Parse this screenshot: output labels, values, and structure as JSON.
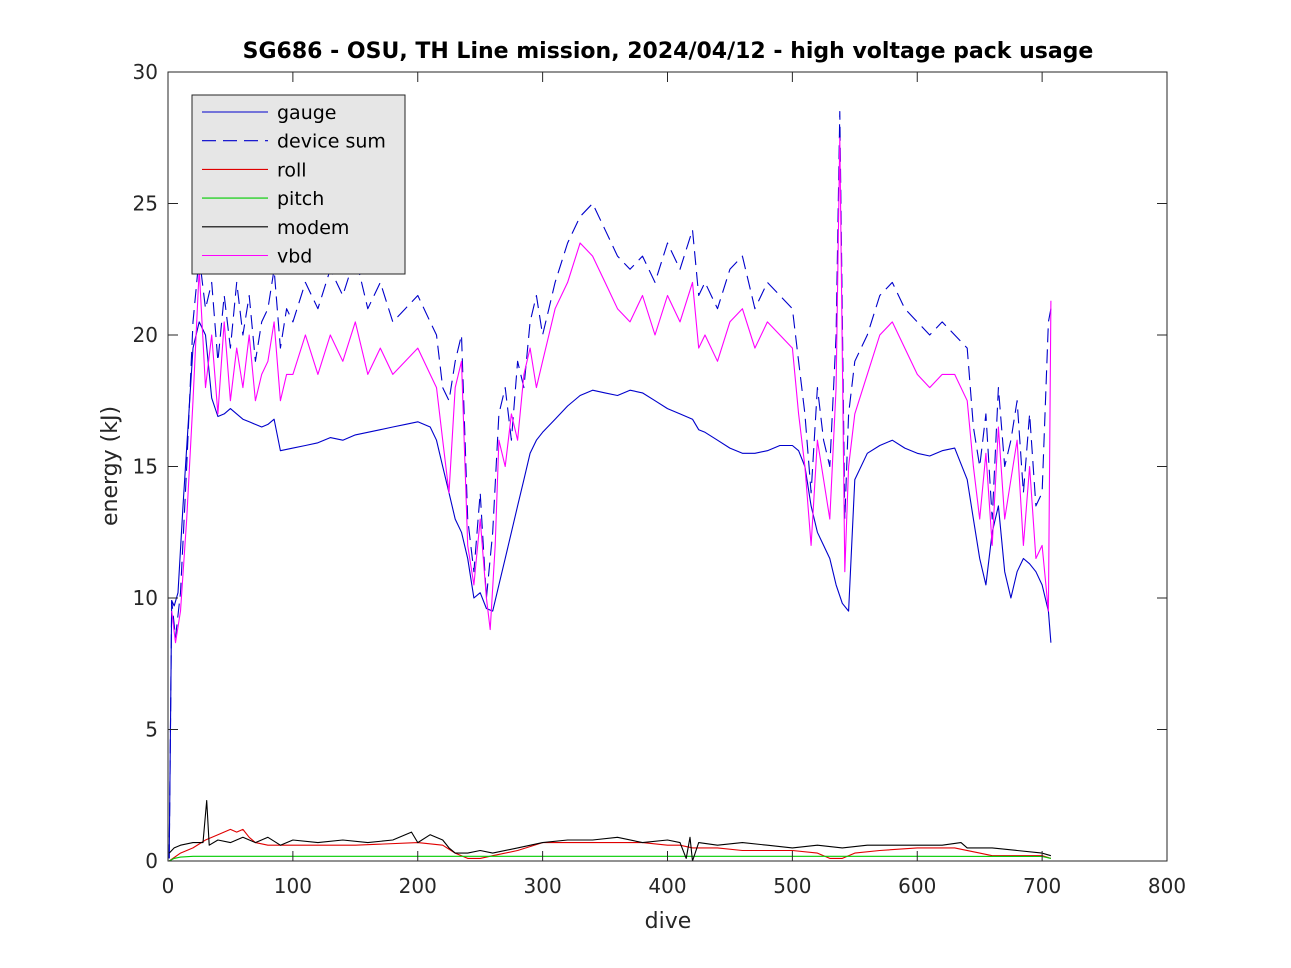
{
  "chart_data": {
    "type": "line",
    "title": "SG686 - OSU, TH Line mission, 2024/04/12 - high voltage pack usage",
    "xlabel": "dive",
    "ylabel": "energy (kJ)",
    "xlim": [
      0,
      800
    ],
    "ylim": [
      0,
      30
    ],
    "xticks": [
      0,
      100,
      200,
      300,
      400,
      500,
      600,
      700,
      800
    ],
    "yticks": [
      0,
      5,
      10,
      15,
      20,
      25,
      30
    ],
    "grid": false,
    "legend_position": "top-left",
    "series": [
      {
        "name": "gauge",
        "color": "#0000cc",
        "style": "solid",
        "x": [
          1,
          3,
          5,
          8,
          12,
          16,
          20,
          25,
          30,
          35,
          40,
          45,
          50,
          55,
          60,
          65,
          70,
          75,
          80,
          85,
          90,
          100,
          110,
          120,
          130,
          140,
          150,
          160,
          170,
          180,
          190,
          200,
          210,
          215,
          220,
          225,
          230,
          235,
          240,
          245,
          250,
          255,
          260,
          265,
          270,
          275,
          280,
          285,
          290,
          295,
          300,
          310,
          320,
          330,
          340,
          350,
          360,
          370,
          380,
          390,
          400,
          410,
          420,
          425,
          430,
          440,
          450,
          460,
          470,
          480,
          490,
          500,
          505,
          510,
          515,
          520,
          525,
          530,
          535,
          540,
          545,
          550,
          560,
          570,
          580,
          590,
          600,
          610,
          620,
          630,
          640,
          645,
          650,
          655,
          660,
          665,
          670,
          675,
          680,
          685,
          690,
          695,
          700,
          705,
          707
        ],
        "values": [
          0.1,
          9.9,
          9.7,
          10.2,
          13.5,
          16.5,
          19.5,
          20.5,
          20.0,
          17.6,
          16.9,
          17.0,
          17.2,
          17.0,
          16.8,
          16.7,
          16.6,
          16.5,
          16.6,
          16.8,
          15.6,
          15.7,
          15.8,
          15.9,
          16.1,
          16.0,
          16.2,
          16.3,
          16.4,
          16.5,
          16.6,
          16.7,
          16.5,
          16.0,
          15.0,
          14.0,
          13.0,
          12.5,
          11.5,
          10.0,
          10.2,
          9.6,
          9.5,
          10.5,
          11.5,
          12.5,
          13.5,
          14.5,
          15.5,
          16.0,
          16.3,
          16.8,
          17.3,
          17.7,
          17.9,
          17.8,
          17.7,
          17.9,
          17.8,
          17.5,
          17.2,
          17.0,
          16.8,
          16.4,
          16.3,
          16.0,
          15.7,
          15.5,
          15.5,
          15.6,
          15.8,
          15.8,
          15.6,
          15.0,
          13.5,
          12.5,
          12.0,
          11.5,
          10.5,
          9.8,
          9.5,
          14.5,
          15.5,
          15.8,
          16.0,
          15.7,
          15.5,
          15.4,
          15.6,
          15.7,
          14.5,
          13.0,
          11.5,
          10.5,
          12.5,
          13.5,
          11.0,
          10.0,
          11.0,
          11.5,
          11.3,
          11.0,
          10.5,
          9.5,
          8.3
        ]
      },
      {
        "name": "device sum",
        "color": "#0000cc",
        "style": "dashed",
        "x": [
          1,
          3,
          6,
          10,
          15,
          20,
          25,
          30,
          35,
          40,
          45,
          50,
          55,
          60,
          65,
          70,
          75,
          80,
          85,
          90,
          95,
          100,
          110,
          120,
          130,
          140,
          150,
          160,
          170,
          180,
          190,
          200,
          210,
          215,
          220,
          225,
          230,
          235,
          240,
          245,
          250,
          255,
          260,
          265,
          270,
          275,
          280,
          285,
          290,
          295,
          300,
          305,
          310,
          320,
          330,
          340,
          350,
          360,
          370,
          380,
          390,
          400,
          410,
          420,
          425,
          430,
          440,
          450,
          460,
          470,
          480,
          490,
          500,
          505,
          510,
          515,
          520,
          525,
          530,
          535,
          538,
          542,
          545,
          550,
          560,
          570,
          580,
          590,
          600,
          610,
          620,
          630,
          640,
          645,
          650,
          655,
          660,
          665,
          670,
          675,
          680,
          685,
          690,
          695,
          700,
          705,
          707
        ],
        "values": [
          0.1,
          9.9,
          8.5,
          10.2,
          15.0,
          20.5,
          23.0,
          21.0,
          22.0,
          19.0,
          21.5,
          19.5,
          22.0,
          20.0,
          21.5,
          19.0,
          20.5,
          21.0,
          22.5,
          19.5,
          21.0,
          20.5,
          22.0,
          21.0,
          22.5,
          21.5,
          23.0,
          21.0,
          22.0,
          20.5,
          21.0,
          21.5,
          20.5,
          20.0,
          18.0,
          17.5,
          19.0,
          20.0,
          13.0,
          11.0,
          14.0,
          10.0,
          12.5,
          17.0,
          18.0,
          16.0,
          19.0,
          18.0,
          20.5,
          21.5,
          20.0,
          21.0,
          22.0,
          23.5,
          24.5,
          25.0,
          24.0,
          23.0,
          22.5,
          23.0,
          22.0,
          23.5,
          22.5,
          24.0,
          21.5,
          22.0,
          21.0,
          22.5,
          23.0,
          21.0,
          22.0,
          21.5,
          21.0,
          19.0,
          17.0,
          14.0,
          18.0,
          16.0,
          15.0,
          20.0,
          28.5,
          13.0,
          17.0,
          19.0,
          20.0,
          21.5,
          22.0,
          21.0,
          20.5,
          20.0,
          20.5,
          20.0,
          19.5,
          16.5,
          15.0,
          17.0,
          13.0,
          18.0,
          15.0,
          16.0,
          17.5,
          14.0,
          17.0,
          13.5,
          14.0,
          20.5,
          21.0
        ]
      },
      {
        "name": "roll",
        "color": "#e00000",
        "style": "solid",
        "x": [
          1,
          10,
          20,
          30,
          40,
          50,
          55,
          60,
          65,
          70,
          80,
          100,
          150,
          200,
          220,
          230,
          240,
          250,
          260,
          280,
          300,
          320,
          350,
          380,
          400,
          410,
          420,
          440,
          460,
          480,
          500,
          520,
          530,
          540,
          550,
          570,
          600,
          630,
          650,
          660,
          680,
          700,
          707
        ],
        "values": [
          0.0,
          0.3,
          0.5,
          0.8,
          1.0,
          1.2,
          1.1,
          1.2,
          0.9,
          0.7,
          0.6,
          0.6,
          0.6,
          0.7,
          0.6,
          0.3,
          0.1,
          0.1,
          0.2,
          0.4,
          0.7,
          0.7,
          0.7,
          0.7,
          0.6,
          0.6,
          0.5,
          0.5,
          0.4,
          0.4,
          0.4,
          0.3,
          0.1,
          0.1,
          0.3,
          0.4,
          0.5,
          0.5,
          0.3,
          0.2,
          0.2,
          0.2,
          0.1
        ]
      },
      {
        "name": "pitch",
        "color": "#00cc00",
        "style": "solid",
        "x": [
          1,
          5,
          10,
          20,
          100,
          200,
          300,
          400,
          500,
          600,
          700,
          707
        ],
        "values": [
          0.0,
          0.1,
          0.15,
          0.18,
          0.18,
          0.18,
          0.18,
          0.18,
          0.18,
          0.18,
          0.17,
          0.1
        ]
      },
      {
        "name": "modem",
        "color": "#000000",
        "style": "solid",
        "x": [
          1,
          5,
          10,
          20,
          28,
          31,
          33,
          40,
          50,
          60,
          70,
          80,
          90,
          100,
          120,
          140,
          160,
          180,
          195,
          200,
          210,
          220,
          225,
          230,
          240,
          250,
          260,
          280,
          300,
          320,
          340,
          360,
          380,
          400,
          410,
          415,
          418,
          420,
          425,
          440,
          460,
          480,
          500,
          520,
          540,
          560,
          580,
          600,
          620,
          635,
          640,
          660,
          680,
          700,
          707
        ],
        "values": [
          0.3,
          0.5,
          0.6,
          0.7,
          0.7,
          2.3,
          0.6,
          0.8,
          0.7,
          0.9,
          0.7,
          0.9,
          0.6,
          0.8,
          0.7,
          0.8,
          0.7,
          0.8,
          1.1,
          0.7,
          1.0,
          0.8,
          0.5,
          0.3,
          0.3,
          0.4,
          0.3,
          0.5,
          0.7,
          0.8,
          0.8,
          0.9,
          0.7,
          0.8,
          0.7,
          0.1,
          0.9,
          0.0,
          0.7,
          0.6,
          0.7,
          0.6,
          0.5,
          0.6,
          0.5,
          0.6,
          0.6,
          0.6,
          0.6,
          0.7,
          0.5,
          0.5,
          0.4,
          0.3,
          0.2
        ]
      },
      {
        "name": "vbd",
        "color": "#ff00ff",
        "style": "solid",
        "x": [
          3,
          6,
          10,
          15,
          20,
          25,
          30,
          35,
          40,
          45,
          50,
          55,
          60,
          65,
          70,
          75,
          80,
          85,
          90,
          95,
          100,
          110,
          120,
          130,
          140,
          150,
          160,
          170,
          180,
          190,
          200,
          210,
          215,
          220,
          225,
          230,
          235,
          240,
          245,
          250,
          255,
          258,
          262,
          265,
          270,
          275,
          280,
          285,
          290,
          295,
          300,
          305,
          310,
          320,
          330,
          340,
          350,
          360,
          370,
          380,
          390,
          400,
          410,
          420,
          425,
          430,
          440,
          450,
          460,
          470,
          480,
          490,
          500,
          505,
          510,
          515,
          520,
          525,
          530,
          535,
          538,
          542,
          545,
          550,
          560,
          570,
          580,
          590,
          600,
          610,
          620,
          630,
          640,
          645,
          650,
          655,
          660,
          665,
          670,
          675,
          680,
          685,
          690,
          695,
          700,
          705,
          707
        ],
        "values": [
          9.5,
          8.3,
          9.5,
          13.0,
          17.5,
          22.5,
          18.0,
          20.0,
          17.0,
          20.5,
          17.5,
          19.5,
          18.0,
          20.0,
          17.5,
          18.5,
          19.0,
          20.5,
          17.5,
          18.5,
          18.5,
          20.0,
          18.5,
          20.0,
          19.0,
          20.5,
          18.5,
          19.5,
          18.5,
          19.0,
          19.5,
          18.5,
          18.0,
          16.0,
          14.0,
          18.0,
          19.0,
          12.0,
          10.5,
          13.0,
          10.0,
          8.8,
          12.0,
          16.0,
          15.0,
          17.0,
          16.0,
          18.5,
          19.5,
          18.0,
          19.0,
          20.0,
          21.0,
          22.0,
          23.5,
          23.0,
          22.0,
          21.0,
          20.5,
          21.5,
          20.0,
          21.5,
          20.5,
          22.0,
          19.5,
          20.0,
          19.0,
          20.5,
          21.0,
          19.5,
          20.5,
          20.0,
          19.5,
          17.0,
          15.0,
          12.0,
          16.0,
          14.5,
          13.0,
          18.0,
          27.5,
          11.0,
          15.0,
          17.0,
          18.5,
          20.0,
          20.5,
          19.5,
          18.5,
          18.0,
          18.5,
          18.5,
          17.5,
          15.0,
          13.0,
          15.5,
          12.0,
          16.5,
          13.0,
          14.5,
          16.0,
          12.0,
          15.0,
          11.5,
          12.0,
          9.5,
          21.3
        ]
      }
    ]
  }
}
